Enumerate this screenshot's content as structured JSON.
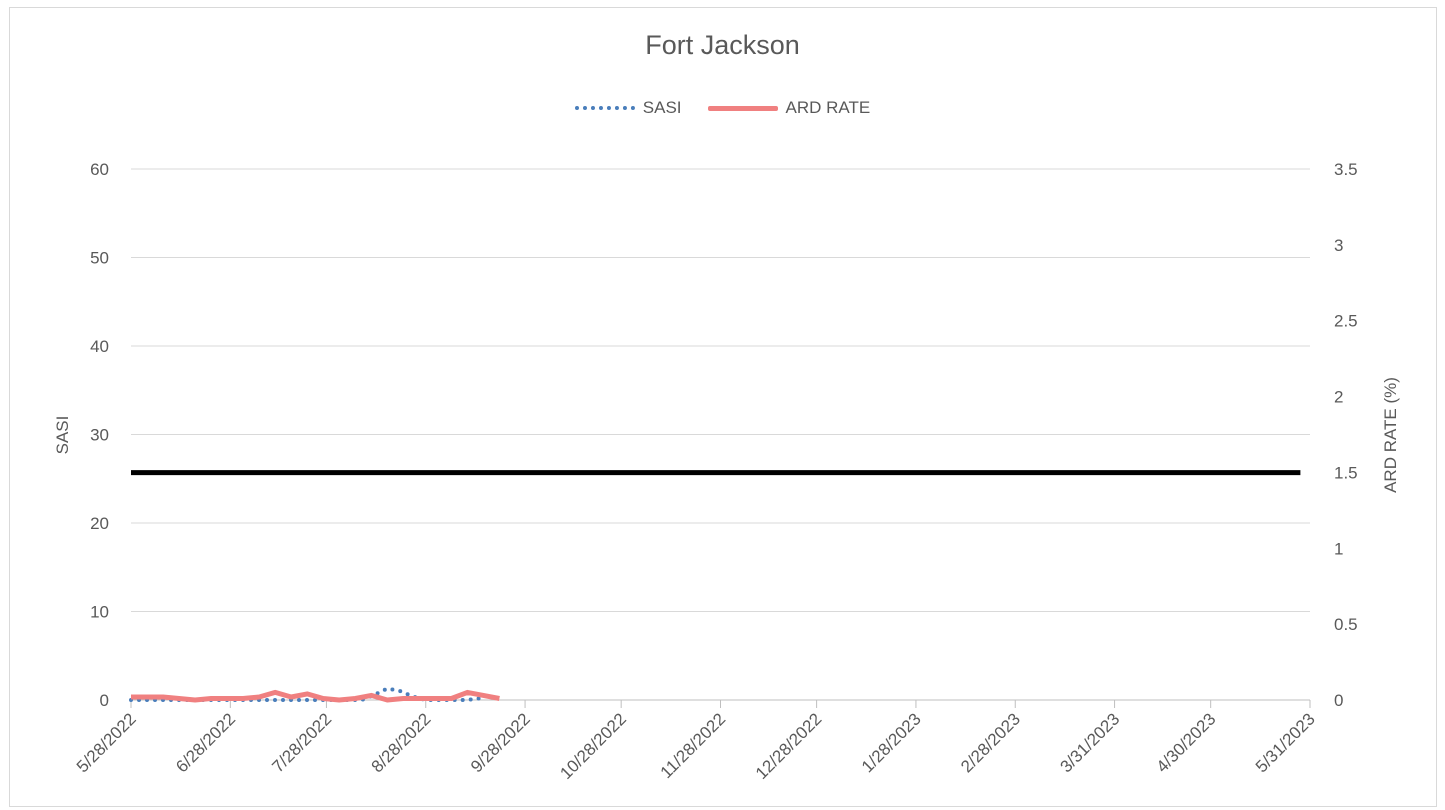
{
  "chart_data": {
    "type": "line",
    "title": "Fort Jackson",
    "legend": {
      "placement": "top",
      "items": [
        "SASI",
        "ARD RATE"
      ]
    },
    "ylabel_left": "SASI",
    "ylabel_right": "ARD RATE (%)",
    "ylim_left": [
      0,
      60
    ],
    "ylim_right": [
      0,
      3.5
    ],
    "yticks_left": [
      "0",
      "10",
      "20",
      "30",
      "40",
      "50",
      "60"
    ],
    "yticks_right": [
      "0",
      "0.5",
      "1",
      "1.5",
      "2",
      "2.5",
      "3",
      "3.5"
    ],
    "xlim": [
      "2022-05-28",
      "2023-05-31"
    ],
    "xticks": [
      "5/28/2022",
      "6/28/2022",
      "7/28/2022",
      "8/28/2022",
      "9/28/2022",
      "10/28/2022",
      "11/28/2022",
      "12/28/2022",
      "1/28/2023",
      "2/28/2023",
      "3/31/2023",
      "4/30/2023",
      "5/31/2023"
    ],
    "grid": true,
    "colors": {
      "sasi": "#4a7ebb",
      "ard": "#f08080",
      "threshold": "#000000",
      "grid": "#d9d9d9"
    },
    "series": [
      {
        "name": "SASI",
        "axis": "left",
        "style": "dotted",
        "x": [
          "2022-05-28",
          "2022-06-01",
          "2022-06-05",
          "2022-06-09",
          "2022-06-13",
          "2022-06-17",
          "2022-06-21",
          "2022-06-25",
          "2022-06-29",
          "2022-07-03",
          "2022-07-07",
          "2022-07-11",
          "2022-07-15",
          "2022-07-19",
          "2022-07-23",
          "2022-07-27",
          "2022-07-31",
          "2022-08-04",
          "2022-08-08",
          "2022-08-12",
          "2022-08-16",
          "2022-08-20",
          "2022-08-24",
          "2022-08-28",
          "2022-09-01",
          "2022-09-05",
          "2022-09-09",
          "2022-09-13",
          "2022-09-17"
        ],
        "y": [
          0,
          0,
          0,
          0,
          0,
          0,
          0,
          0,
          0,
          0,
          0,
          0,
          0,
          0,
          0,
          0,
          0,
          0,
          0,
          0.6,
          1.3,
          1.0,
          0.4,
          0,
          0,
          0,
          0,
          0.1,
          0.6
        ]
      },
      {
        "name": "ARD RATE",
        "axis": "right",
        "style": "solid",
        "x": [
          "2022-05-28",
          "2022-06-02",
          "2022-06-07",
          "2022-06-12",
          "2022-06-17",
          "2022-06-22",
          "2022-06-27",
          "2022-07-02",
          "2022-07-07",
          "2022-07-12",
          "2022-07-17",
          "2022-07-22",
          "2022-07-27",
          "2022-08-01",
          "2022-08-06",
          "2022-08-11",
          "2022-08-16",
          "2022-08-21",
          "2022-08-26",
          "2022-08-31",
          "2022-09-05",
          "2022-09-10",
          "2022-09-15",
          "2022-09-20"
        ],
        "y": [
          0.02,
          0.02,
          0.02,
          0.01,
          0,
          0.01,
          0.01,
          0.01,
          0.02,
          0.05,
          0.02,
          0.04,
          0.01,
          0,
          0.01,
          0.03,
          0,
          0.01,
          0.01,
          0.01,
          0.01,
          0.05,
          0.03,
          0.01
        ]
      },
      {
        "axis": "left",
        "style": "solid",
        "x": [
          "2022-05-28",
          "2023-05-28"
        ],
        "y": [
          25.7,
          25.7
        ]
      }
    ]
  }
}
